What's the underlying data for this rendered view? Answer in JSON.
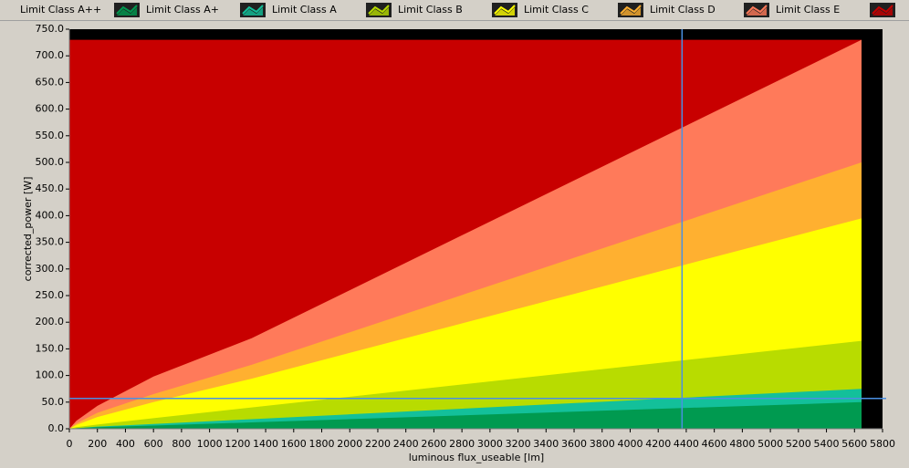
{
  "chart_data": {
    "type": "area",
    "xlabel": "luminous flux_useable [lm]",
    "ylabel": "corrected_power [W]",
    "x": [
      0,
      50,
      200,
      600,
      1300,
      5650
    ],
    "series": [
      {
        "name": "Limit Class A++",
        "color": "#009a50",
        "values": [
          0,
          1,
          3,
          6,
          12,
          50
        ]
      },
      {
        "name": "Limit Class A+",
        "color": "#13c09a",
        "values": [
          0,
          1,
          4,
          9,
          18,
          75
        ]
      },
      {
        "name": "Limit Class A",
        "color": "#b8dc00",
        "values": [
          0,
          3,
          8,
          20,
          40,
          165
        ]
      },
      {
        "name": "Limit Class B",
        "color": "#ffff00",
        "values": [
          0,
          7,
          22,
          50,
          94,
          395
        ]
      },
      {
        "name": "Limit Class C",
        "color": "#ffb030",
        "values": [
          0,
          10,
          30,
          65,
          120,
          500
        ]
      },
      {
        "name": "Limit Class D",
        "color": "#ff7a5a",
        "values": [
          0,
          15,
          43,
          98,
          170,
          730
        ]
      },
      {
        "name": "Limit Class E",
        "color": "#c80000",
        "values": [
          730,
          730,
          730,
          730,
          730,
          730
        ]
      }
    ],
    "cursor": {
      "x": 4370,
      "y": 57,
      "color": "#4a90e2"
    },
    "xlim": [
      0,
      5800
    ],
    "ylim": [
      0,
      750
    ],
    "xticks": [
      0,
      200,
      400,
      600,
      800,
      1000,
      1200,
      1400,
      1600,
      1800,
      2000,
      2200,
      2400,
      2600,
      2800,
      3000,
      3200,
      3400,
      3600,
      3800,
      4000,
      4200,
      4400,
      4600,
      4800,
      5000,
      5200,
      5400,
      5600,
      5800
    ],
    "yticks": [
      {
        "value": 0,
        "label": "0.0"
      },
      {
        "value": 50,
        "label": "50.0"
      },
      {
        "value": 100,
        "label": "100.0"
      },
      {
        "value": 150,
        "label": "150.0"
      },
      {
        "value": 200,
        "label": "200.0"
      },
      {
        "value": 250,
        "label": "250.0"
      },
      {
        "value": 300,
        "label": "300.0"
      },
      {
        "value": 350,
        "label": "350.0"
      },
      {
        "value": 400,
        "label": "400.0"
      },
      {
        "value": 450,
        "label": "450.0"
      },
      {
        "value": 500,
        "label": "500.0"
      },
      {
        "value": 550,
        "label": "550.0"
      },
      {
        "value": 600,
        "label": "600.0"
      },
      {
        "value": 650,
        "label": "650.0"
      },
      {
        "value": 700,
        "label": "700.0"
      },
      {
        "value": 750,
        "label": "750.0"
      }
    ]
  }
}
